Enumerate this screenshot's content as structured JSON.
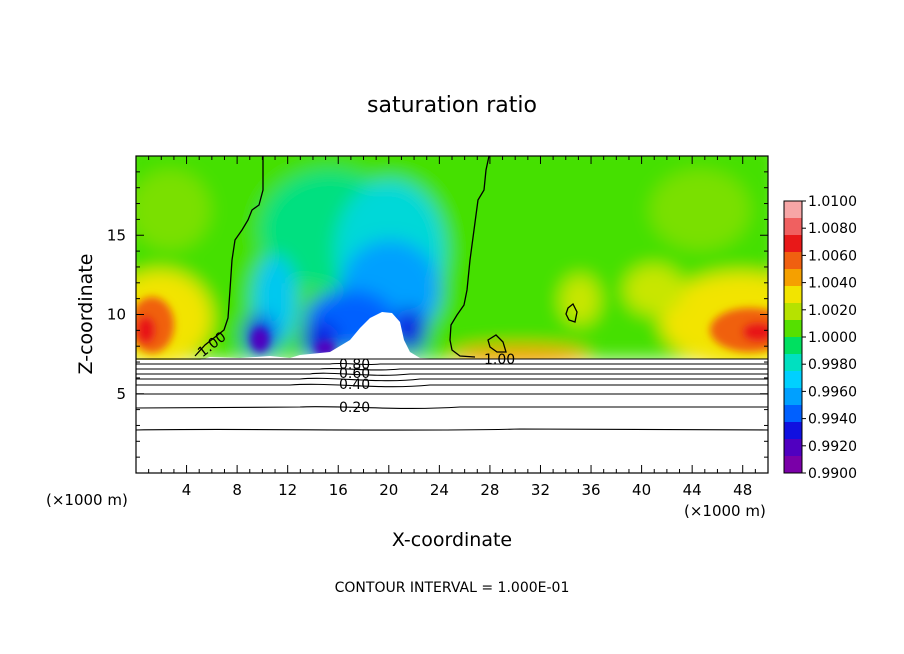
{
  "chart_data": {
    "type": "heatmap",
    "title": "saturation ratio",
    "xlabel": "X-coordinate",
    "ylabel": "Z-coordinate",
    "x_unit_left": "(×1000 m)",
    "x_unit_right": "(×1000 m)",
    "xlim": [
      0,
      50
    ],
    "ylim": [
      0,
      20
    ],
    "x_ticks": [
      4,
      8,
      12,
      16,
      20,
      24,
      28,
      32,
      36,
      40,
      44,
      48
    ],
    "y_ticks": [
      5,
      10,
      15
    ],
    "footer": "CONTOUR INTERVAL = 1.000E-01",
    "colorbar": {
      "levels": [
        "1.0100",
        "1.0080",
        "1.0060",
        "1.0040",
        "1.0020",
        "1.0000",
        "0.9980",
        "0.9960",
        "0.9940",
        "0.9920",
        "0.9900"
      ],
      "colors": [
        "#f7a6a6",
        "#f06060",
        "#e81818",
        "#f06010",
        "#f5a000",
        "#f2e400",
        "#b6e200",
        "#55e000",
        "#00e060",
        "#00e0c0",
        "#00d0ff",
        "#00a0ff",
        "#0060ff",
        "#1010e0",
        "#5000c0",
        "#7a00a8"
      ]
    },
    "contour_labels": [
      {
        "text": "1.00",
        "x": 6.0,
        "z": 8.1
      },
      {
        "text": "1.00",
        "x": 29.5,
        "z": 7.0
      },
      {
        "text": "0.80",
        "x": 17.6,
        "z": 6.8
      },
      {
        "text": "0.60",
        "x": 17.6,
        "z": 6.2
      },
      {
        "text": "0.40",
        "x": 17.6,
        "z": 5.6
      },
      {
        "text": "0.20",
        "x": 17.6,
        "z": 4.1
      }
    ],
    "contour_levels_below_cloud": [
      7.2,
      6.9,
      6.6,
      6.4,
      6.1,
      5.7,
      5.2,
      4.3,
      2.9
    ]
  }
}
